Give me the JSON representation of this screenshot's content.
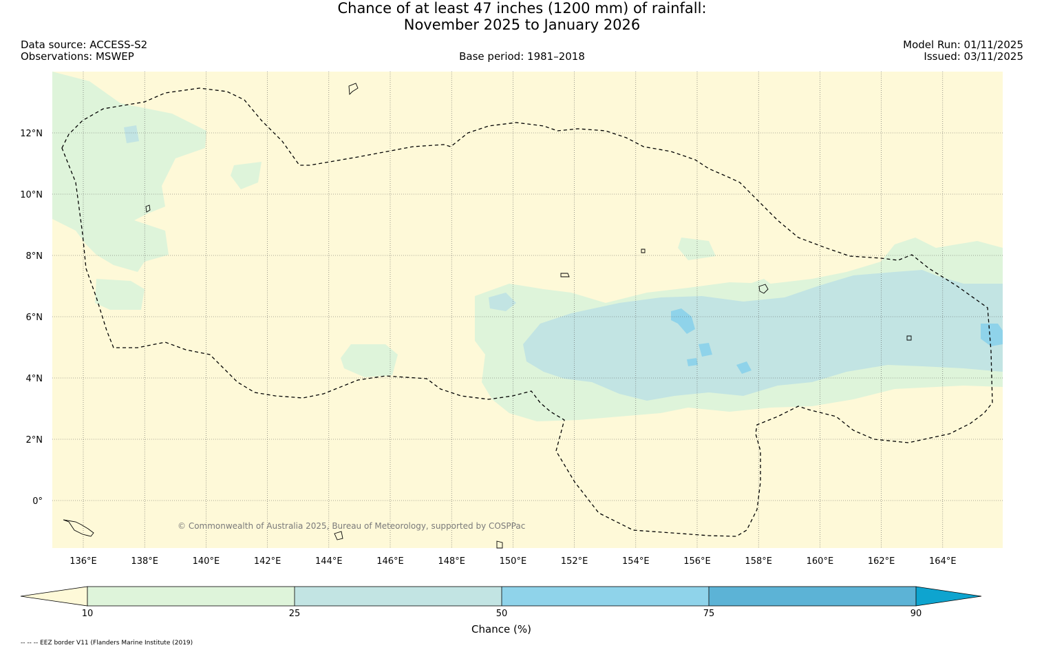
{
  "header": {
    "title_line1": "Chance of at least 47 inches (1200  mm) of rainfall:",
    "title_line2": "November 2025 to January 2026",
    "data_source": "Data source: ACCESS-S2",
    "observations": "Observations: MSWEP",
    "base_period": "Base period: 1981–2018",
    "model_run": "Model Run: 01/11/2025",
    "issued": "Issued: 03/11/2025"
  },
  "map": {
    "lon_ticks": [
      "136°E",
      "138°E",
      "140°E",
      "142°E",
      "144°E",
      "146°E",
      "148°E",
      "150°E",
      "152°E",
      "154°E",
      "156°E",
      "158°E",
      "160°E",
      "162°E",
      "164°E"
    ],
    "lat_ticks": [
      "12°N",
      "10°N",
      "8°N",
      "6°N",
      "4°N",
      "2°N",
      "0°"
    ],
    "copyright": "© Commonwealth of Australia 2025, Bureau of Meteorology, supported by COSPPac",
    "colors": {
      "below10": "#fef9d8",
      "c10_25": "#def4da",
      "c25_50": "#c2e4e3",
      "c50_75": "#8fd3ea",
      "c75_90": "#5cb3d6",
      "above90": "#0ea4cf",
      "grid": "#555555",
      "eez": "#000000"
    }
  },
  "colorbar": {
    "labels": [
      "10",
      "25",
      "50",
      "75",
      "90"
    ],
    "title": "Chance (%)"
  },
  "footer": {
    "legend_note": "-- -- -- EEZ border V11 (Flanders Marine Institute (2019)"
  }
}
